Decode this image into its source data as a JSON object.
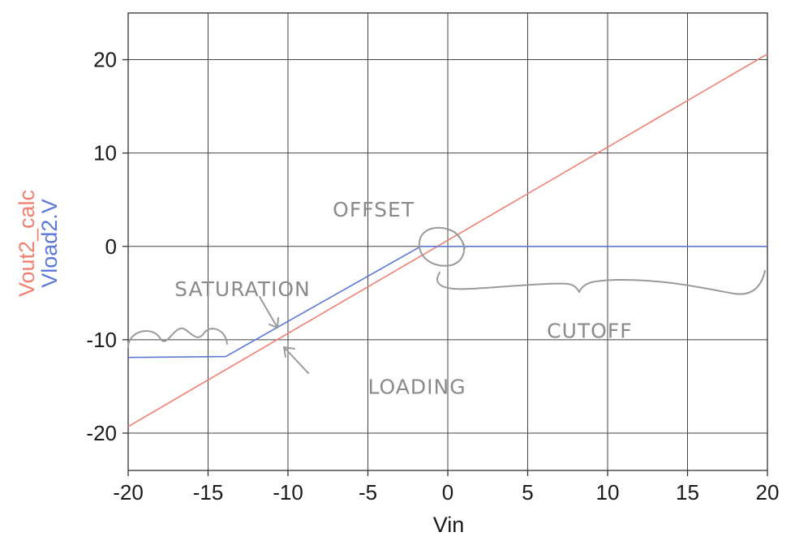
{
  "chart_data": {
    "type": "line",
    "xlabel": "Vin",
    "ylabels": [
      {
        "text": "Vout2_calc",
        "color": "#f08070"
      },
      {
        "text": "Vload2.V",
        "color": "#5b78d8"
      }
    ],
    "xlim": [
      -20,
      20
    ],
    "ylim": [
      -24,
      25
    ],
    "xticks": [
      -20,
      -15,
      -10,
      -5,
      0,
      5,
      10,
      15,
      20
    ],
    "yticks": [
      -20,
      -10,
      0,
      10,
      20
    ],
    "xtick_labels": [
      "-20",
      "-15",
      "-10",
      "-5",
      "0",
      "5",
      "10",
      "15",
      "20"
    ],
    "ytick_labels": [
      "-20",
      "-10",
      "0",
      "10",
      "20"
    ],
    "grid": true,
    "series": [
      {
        "label": "Vout2_calc",
        "color": "#f08070",
        "points": [
          [
            -20,
            -19.3
          ],
          [
            20,
            20.6
          ]
        ]
      },
      {
        "label": "Vload2.V",
        "color": "#5b78d8",
        "points": [
          [
            -20,
            -11.9
          ],
          [
            -13.9,
            -11.8
          ],
          [
            -1.7,
            0.0
          ],
          [
            20,
            0.0
          ]
        ]
      }
    ],
    "annotations": [
      {
        "text": "OFFSET",
        "x": -7.2,
        "y": 3.2
      },
      {
        "text": "SATURATION",
        "x": -17.1,
        "y": -5.3
      },
      {
        "text": "LOADING",
        "x": -5.0,
        "y": -15.8
      },
      {
        "text": "CUTOFF",
        "x": 6.2,
        "y": -9.8
      }
    ]
  }
}
